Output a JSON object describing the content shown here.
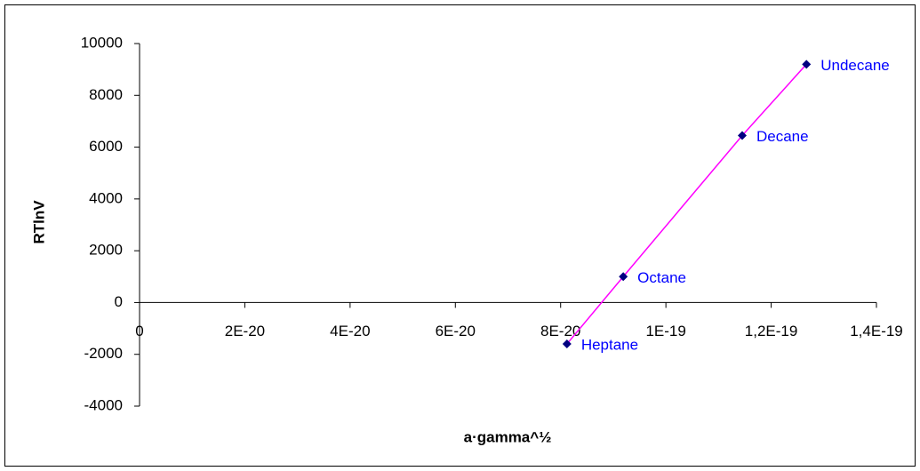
{
  "chart_data": {
    "type": "scatter",
    "x_label": "a·gamma^½",
    "y_label": "RTlnV",
    "xlim": [
      0,
      1.4e-19
    ],
    "xticks": [
      0,
      {
        "value": 2e-20,
        "label": "2E-20"
      },
      {
        "value": 4e-20,
        "label": "4E-20"
      },
      {
        "value": 6e-20,
        "label": "6E-20"
      },
      {
        "value": 8e-20,
        "label": "8E-20"
      },
      {
        "value": 1e-19,
        "label": "1E-19"
      },
      {
        "value": 1.2e-19,
        "label": "1,2E-19"
      },
      {
        "value": 1.4e-19,
        "label": "1,4E-19"
      }
    ],
    "ylim": [
      -4000,
      10000
    ],
    "yticks": [
      -4000,
      -2000,
      0,
      2000,
      4000,
      6000,
      8000,
      10000
    ],
    "grid": false,
    "series": [
      {
        "color": "#000080",
        "line_color": "#ff00ff",
        "labels": [
          "Heptane",
          "Octane",
          "Decane",
          "Undecane"
        ],
        "x": [
          8.12e-20,
          9.19e-20,
          1.145e-19,
          1.267e-19
        ],
        "values": [
          -1600,
          1000,
          6450,
          9200
        ]
      }
    ]
  }
}
